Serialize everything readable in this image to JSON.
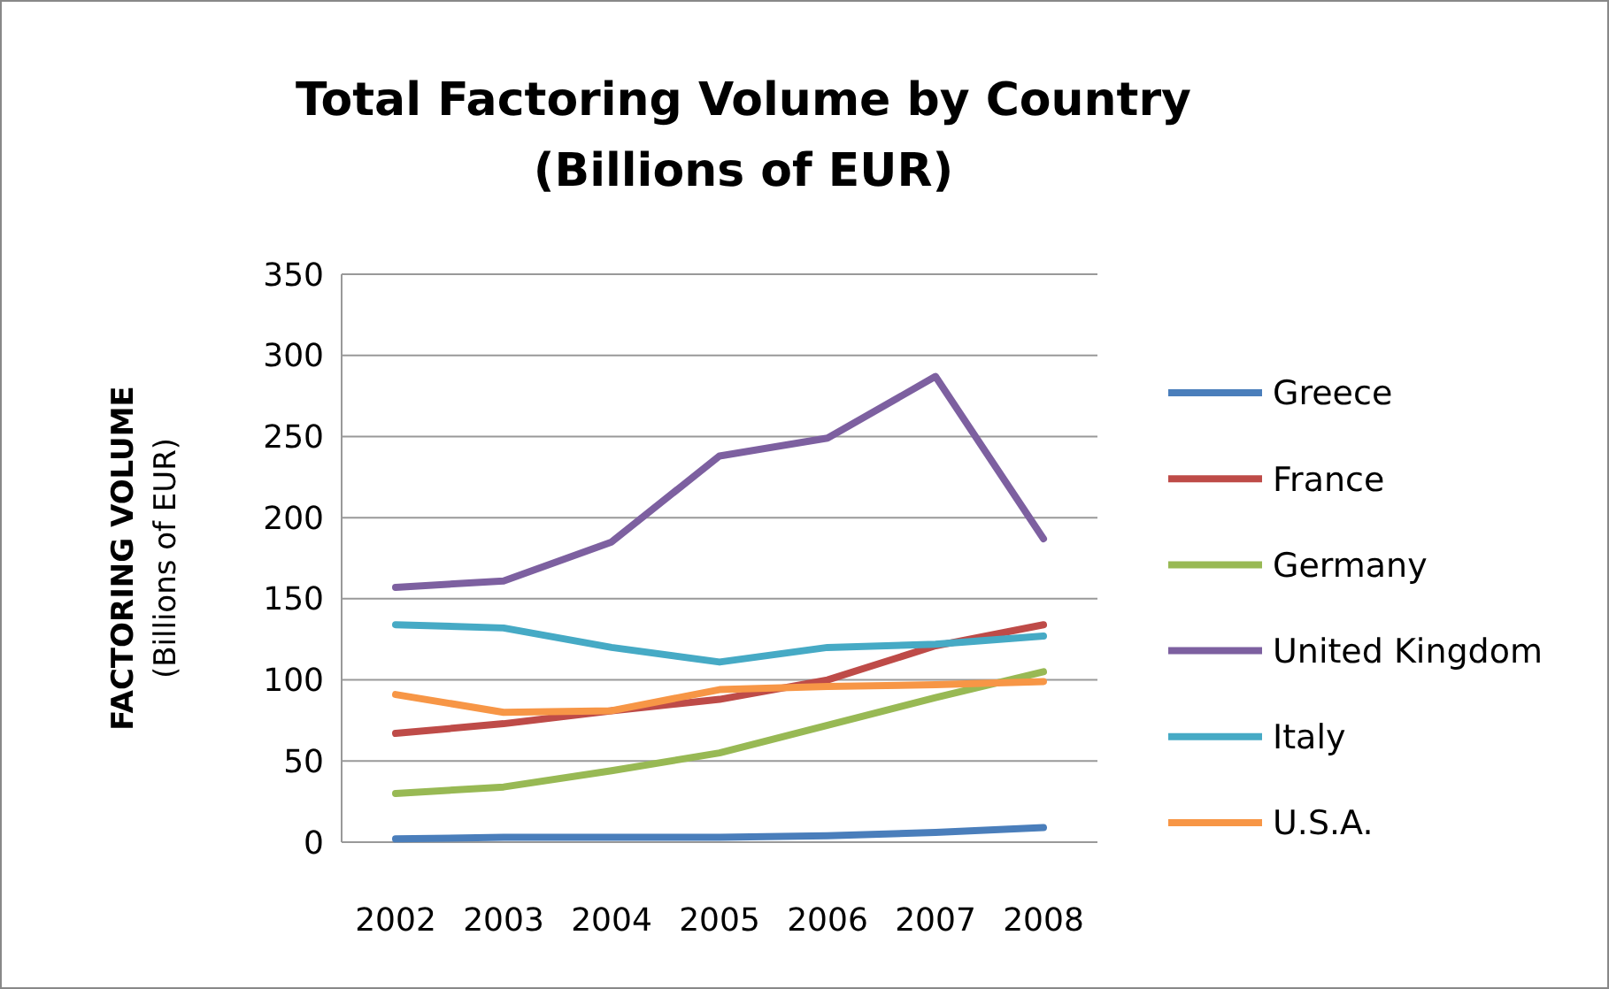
{
  "chart_data": {
    "type": "line",
    "title": "Total Factoring Volume by Country\n(Billions of EUR)",
    "ylabel": "FACTORING VOLUME\n(Billions of EUR)",
    "categories": [
      "2002",
      "2003",
      "2004",
      "2005",
      "2006",
      "2007",
      "2008"
    ],
    "series": [
      {
        "name": "Greece",
        "color": "#4a7ebb",
        "values": [
          2,
          3,
          3,
          3,
          4,
          6,
          9
        ]
      },
      {
        "name": "France",
        "color": "#be4b48",
        "values": [
          67,
          73,
          81,
          88,
          100,
          121,
          134
        ]
      },
      {
        "name": "Germany",
        "color": "#98b954",
        "values": [
          30,
          34,
          44,
          55,
          72,
          89,
          105
        ]
      },
      {
        "name": "United Kingdom",
        "color": "#7d60a0",
        "values": [
          157,
          161,
          185,
          238,
          249,
          287,
          187
        ]
      },
      {
        "name": "Italy",
        "color": "#46aac5",
        "values": [
          134,
          132,
          120,
          111,
          120,
          122,
          127
        ]
      },
      {
        "name": "U.S.A.",
        "color": "#f79646",
        "values": [
          91,
          80,
          81,
          94,
          96,
          97,
          99
        ]
      }
    ],
    "ylim": [
      0,
      350
    ],
    "yticks": [
      0,
      50,
      100,
      150,
      200,
      250,
      300,
      350
    ],
    "grid": "y",
    "legend": "right",
    "marker": "none",
    "line_style": "solid"
  }
}
